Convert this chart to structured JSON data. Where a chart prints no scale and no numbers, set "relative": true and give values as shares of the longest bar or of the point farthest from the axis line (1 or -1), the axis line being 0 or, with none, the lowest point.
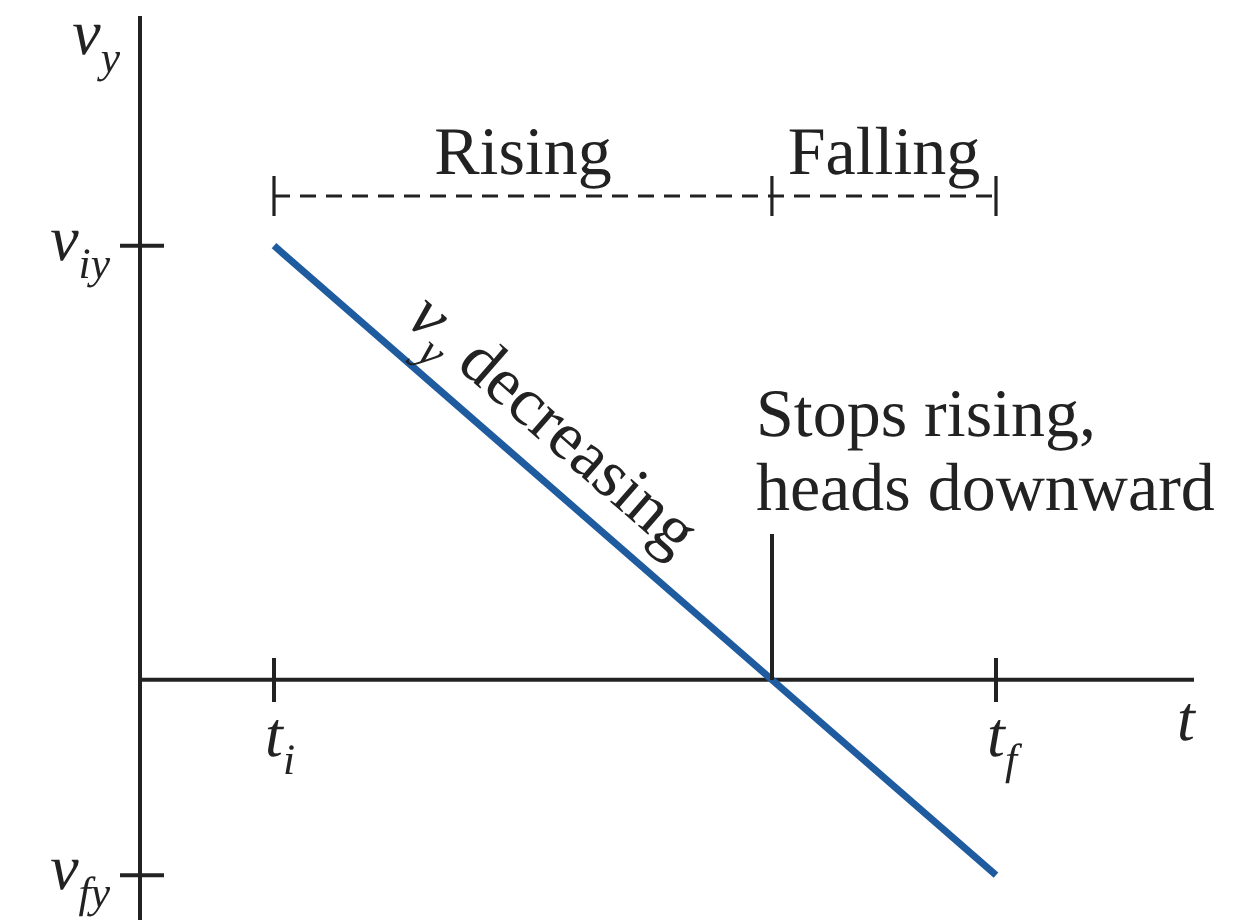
{
  "chart_data": {
    "type": "line",
    "relative": true,
    "xlabel": "t",
    "ylabel": "v$_{y}$",
    "categories": [
      "t$_{i}$",
      "t$_{f}$"
    ],
    "values": [
      1,
      -0.45
    ],
    "color": "#1f5b9f",
    "annotations": [
      "v$_{iy}$",
      "v$_{fy}$",
      "Rising",
      "Falling",
      "v$_{y}$ decreasing",
      "Stops rising,\nheads downward"
    ]
  }
}
